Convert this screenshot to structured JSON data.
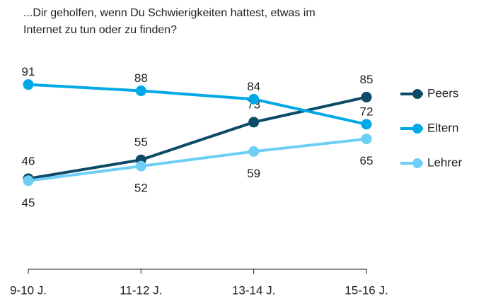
{
  "chart_data": {
    "type": "line",
    "title": "...Dir geholfen, wenn Du Schwierigkeiten hattest, etwas im Internet zu tun oder zu finden?",
    "categories": [
      "9-10 J.",
      "11-12 J.",
      "13-14 J.",
      "15-16 J."
    ],
    "series": [
      {
        "name": "Peers",
        "color": "#0d4a68",
        "values": [
          46,
          55,
          73,
          85
        ]
      },
      {
        "name": "Eltern",
        "color": "#00a9e6",
        "values": [
          91,
          88,
          84,
          72
        ]
      },
      {
        "name": "Lehrer",
        "color": "#6dcff6",
        "values": [
          45,
          52,
          59,
          65
        ]
      }
    ],
    "ylim": [
      0,
      100
    ],
    "legend": "right"
  }
}
